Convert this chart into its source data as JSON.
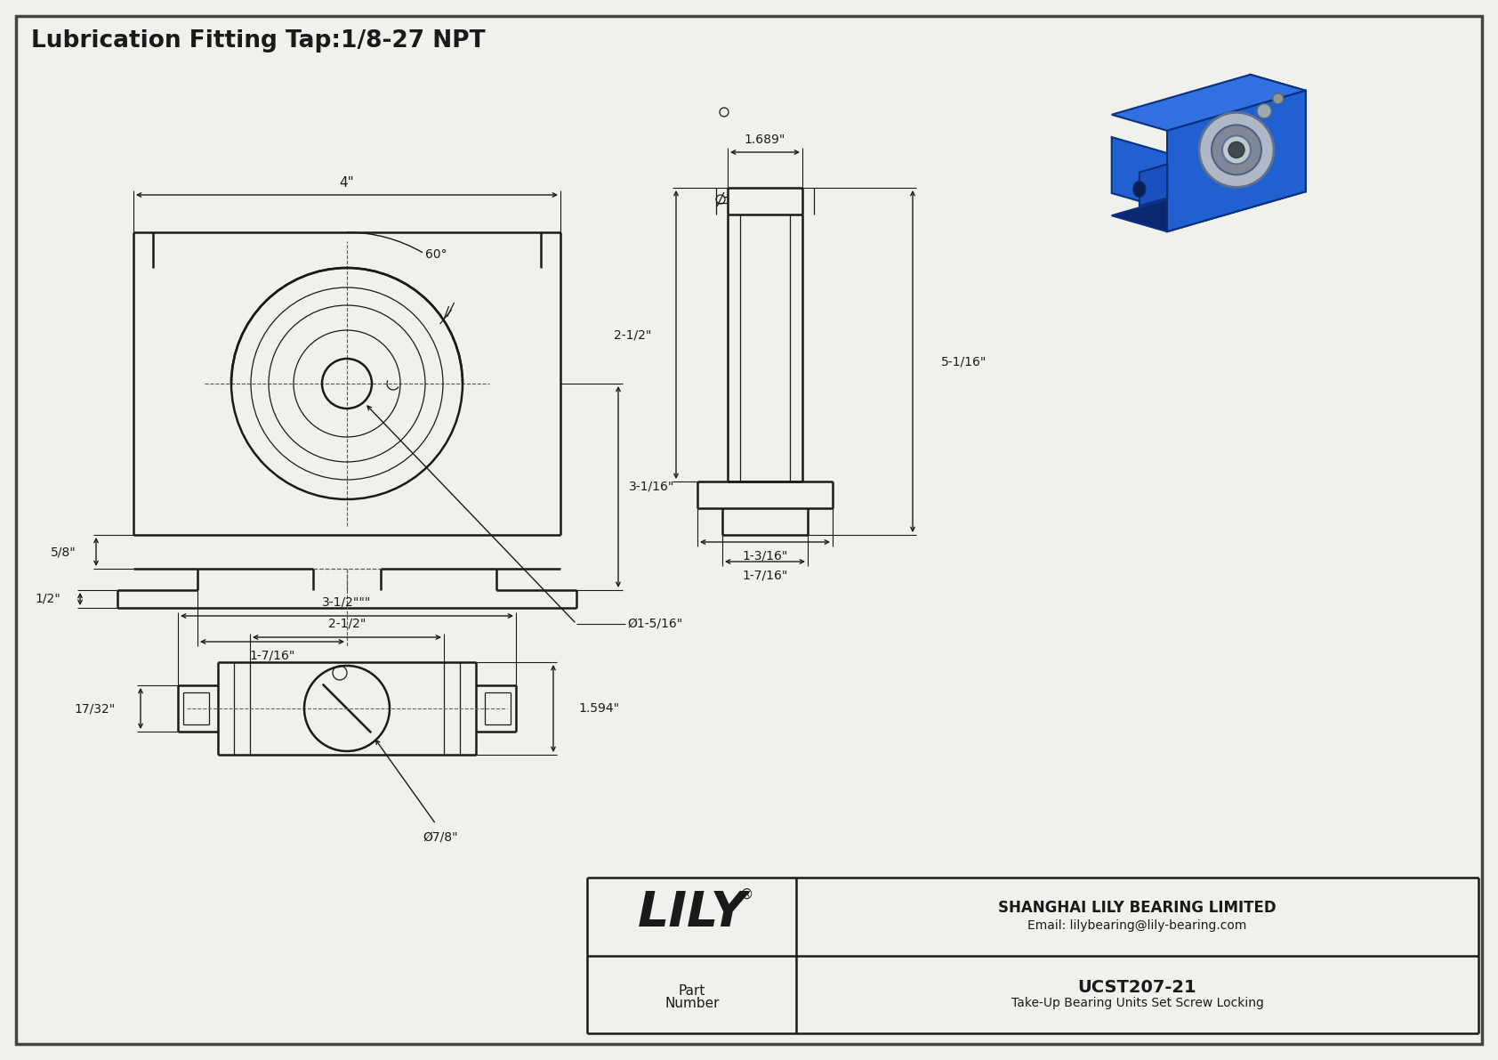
{
  "title": "Lubrication Fitting Tap:1/8-27 NPT",
  "bg_color": "#f0f0ec",
  "line_color": "#1a1a1a",
  "border_color": "#333333",
  "part_number": "UCST207-21",
  "part_desc": "Take-Up Bearing Units Set Screw Locking",
  "company": "SHANGHAI LILY BEARING LIMITED",
  "email": "Email: lilybearing@lily-bearing.com",
  "lily_logo": "LILY",
  "dim_4in": "4\"",
  "dim_60": "60°",
  "dim_5_8": "5/8\"",
  "dim_3_1_16": "3-1/16\"",
  "dim_1_2": "1/2\"",
  "dim_1_7_16": "1-7/16\"",
  "dia_1_5_16": "Ø1-5/16\"",
  "dim_1_689": "1.689\"",
  "dim_2_1_2": "2-1/2\"",
  "dim_5_1_16": "5-1/16\"",
  "dim_1_3_16": "1-3/16\"",
  "dim_1_7_16b": "1-7/16\"",
  "dim_3_1_2": "3-1/2\"\"\"",
  "dim_2_1_2b": "2-1/2\"",
  "dim_1_594": "1.594\"",
  "dim_17_32": "17/32\"",
  "dia_7_8": "Ø7/8\""
}
